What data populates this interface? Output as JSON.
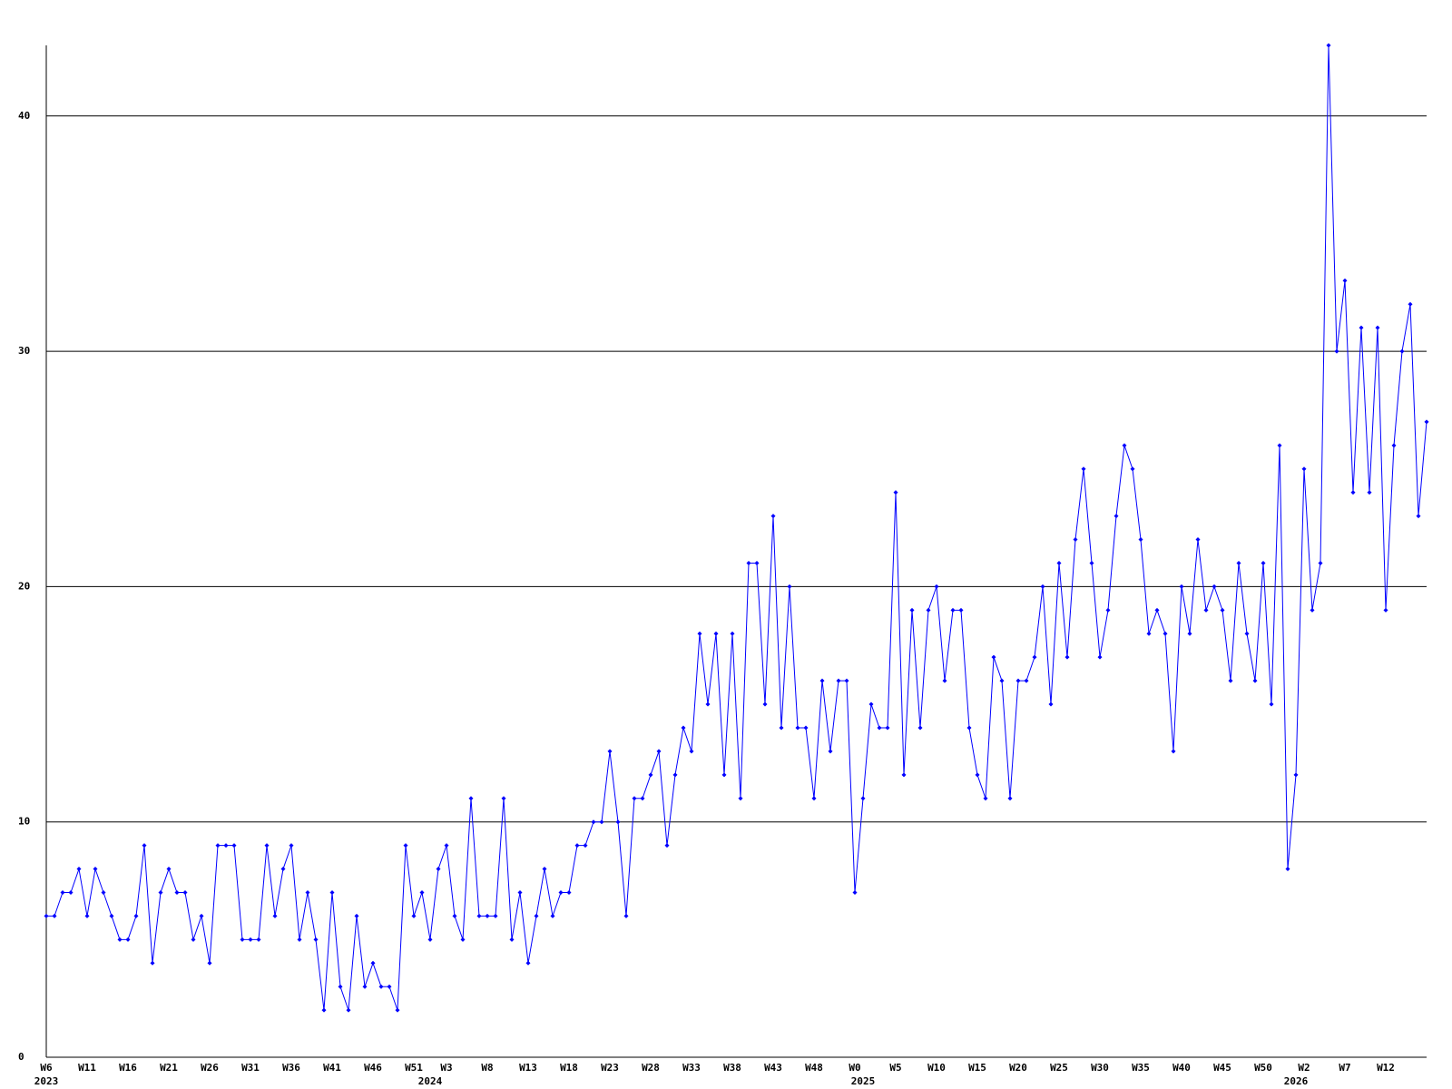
{
  "chart_data": {
    "type": "line",
    "categories": [
      "W6",
      null,
      null,
      null,
      null,
      "W11",
      null,
      null,
      null,
      null,
      "W16",
      null,
      null,
      null,
      null,
      "W21",
      null,
      null,
      null,
      null,
      "W26",
      null,
      null,
      null,
      null,
      "W31",
      null,
      null,
      null,
      null,
      "W36",
      null,
      null,
      null,
      null,
      "W41",
      null,
      null,
      null,
      null,
      "W46",
      null,
      null,
      null,
      null,
      "W51",
      null,
      null,
      null,
      "W3",
      null,
      null,
      null,
      null,
      "W8",
      null,
      null,
      null,
      null,
      "W13",
      null,
      null,
      null,
      null,
      "W18",
      null,
      null,
      null,
      null,
      "W23",
      null,
      null,
      null,
      null,
      "W28",
      null,
      null,
      null,
      null,
      "W33",
      null,
      null,
      null,
      null,
      "W38",
      null,
      null,
      null,
      null,
      "W43",
      null,
      null,
      null,
      null,
      "W48",
      null,
      null,
      null,
      null,
      "W0",
      null,
      null,
      null,
      null,
      "W5",
      null,
      null,
      null,
      null,
      "W10",
      null,
      null,
      null,
      null,
      "W15",
      null,
      null,
      null,
      null,
      "W20",
      null,
      null,
      null,
      null,
      "W25",
      null,
      null,
      null,
      null,
      "W30",
      null,
      null,
      null,
      null,
      "W35",
      null,
      null,
      null,
      null,
      "W40",
      null,
      null,
      null,
      null,
      "W45",
      null,
      null,
      null,
      null,
      "W50",
      null,
      null,
      null,
      null,
      "W2",
      null,
      null,
      null,
      null,
      "W7",
      null,
      null,
      null,
      null,
      "W12",
      null,
      null,
      null,
      null,
      null
    ],
    "category_groups": [
      "2023",
      null,
      null,
      null,
      null,
      null,
      null,
      null,
      null,
      null,
      null,
      null,
      null,
      null,
      null,
      null,
      null,
      null,
      null,
      null,
      null,
      null,
      null,
      null,
      null,
      null,
      null,
      null,
      null,
      null,
      null,
      null,
      null,
      null,
      null,
      null,
      null,
      null,
      null,
      null,
      null,
      null,
      null,
      null,
      null,
      null,
      null,
      "2024",
      null,
      null,
      null,
      null,
      null,
      null,
      null,
      null,
      null,
      null,
      null,
      null,
      null,
      null,
      null,
      null,
      null,
      null,
      null,
      null,
      null,
      null,
      null,
      null,
      null,
      null,
      null,
      null,
      null,
      null,
      null,
      null,
      null,
      null,
      null,
      null,
      null,
      null,
      null,
      null,
      null,
      null,
      null,
      null,
      null,
      null,
      null,
      null,
      null,
      null,
      null,
      null,
      "2025",
      null,
      null,
      null,
      null,
      null,
      null,
      null,
      null,
      null,
      null,
      null,
      null,
      null,
      null,
      null,
      null,
      null,
      null,
      null,
      null,
      null,
      null,
      null,
      null,
      null,
      null,
      null,
      null,
      null,
      null,
      null,
      null,
      null,
      null,
      null,
      null,
      null,
      null,
      null,
      null,
      null,
      null,
      null,
      null,
      null,
      null,
      null,
      null,
      null,
      null,
      null,
      null,
      "2026",
      null,
      null,
      null,
      null,
      null,
      null,
      null,
      null,
      null,
      null,
      null,
      null,
      null,
      null,
      null,
      null
    ],
    "series": [
      {
        "color": "#0000ff",
        "values": [
          6,
          6,
          7,
          7,
          8,
          6,
          8,
          7,
          6,
          5,
          5,
          6,
          9,
          4,
          7,
          8,
          7,
          7,
          5,
          6,
          4,
          9,
          9,
          9,
          5,
          5,
          5,
          9,
          6,
          8,
          9,
          5,
          7,
          5,
          2,
          7,
          3,
          2,
          6,
          3,
          4,
          3,
          3,
          2,
          9,
          6,
          7,
          5,
          8,
          9,
          6,
          5,
          11,
          6,
          6,
          6,
          11,
          5,
          7,
          4,
          6,
          8,
          6,
          7,
          7,
          9,
          9,
          10,
          10,
          13,
          10,
          6,
          11,
          11,
          12,
          13,
          9,
          12,
          14,
          13,
          18,
          15,
          18,
          12,
          18,
          11,
          21,
          21,
          15,
          23,
          14,
          20,
          14,
          14,
          11,
          16,
          13,
          16,
          16,
          7,
          11,
          15,
          14,
          14,
          24,
          12,
          19,
          14,
          19,
          20,
          16,
          19,
          19,
          14,
          12,
          11,
          17,
          16,
          11,
          16,
          16,
          17,
          20,
          15,
          21,
          17,
          22,
          25,
          21,
          17,
          19,
          23,
          26,
          25,
          22,
          18,
          19,
          18,
          13,
          20,
          18,
          22,
          19,
          20,
          19,
          16,
          21,
          18,
          16,
          21,
          15,
          26,
          8,
          12,
          25,
          19,
          21,
          43,
          30,
          33,
          24,
          31,
          24,
          31,
          19,
          26,
          30,
          32,
          23,
          27
        ]
      }
    ],
    "ylim": [
      0,
      43
    ],
    "yticks": [
      0,
      10,
      20,
      30,
      40
    ],
    "grid": true
  }
}
